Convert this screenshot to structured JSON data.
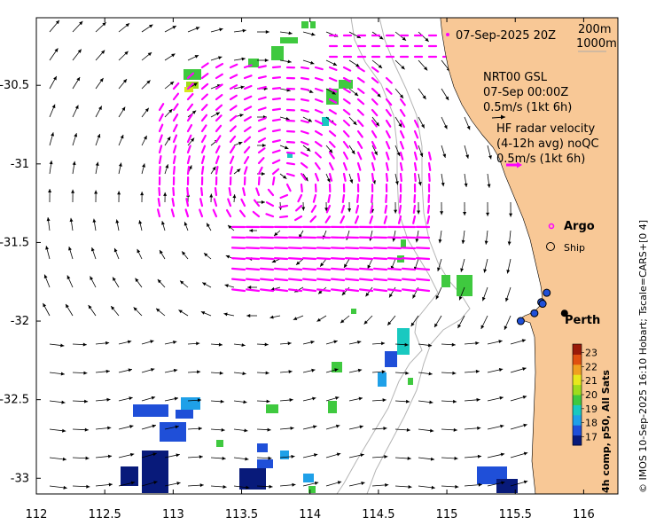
{
  "chart_data": {
    "type": "map",
    "xlim": [
      112,
      116.25
    ],
    "ylim": [
      -33.1,
      -30.07
    ],
    "x_ticks": [
      112,
      112.5,
      113,
      113.5,
      114,
      114.5,
      115,
      115.5,
      116
    ],
    "x_tick_labels": [
      "112",
      "112.5",
      "113",
      "113.5",
      "114",
      "114.5",
      "115",
      "115.5",
      "116"
    ],
    "y_ticks": [
      -30.5,
      -31,
      -31.5,
      -32,
      -32.5,
      -33
    ],
    "y_tick_labels": [
      "-30.5",
      "-31",
      "-31.5",
      "-32",
      "-32.5",
      "-33"
    ],
    "colorbar": {
      "title": "4h comp, p50, All Sats",
      "ticks": [
        17,
        18,
        19,
        20,
        21,
        22,
        23
      ],
      "tick_labels": [
        "17",
        "18",
        "19",
        "20",
        "21",
        "22",
        "23"
      ],
      "colors": [
        "#081a7a",
        "#1f4fd8",
        "#1fa0e8",
        "#19c9c0",
        "#3fc93f",
        "#9fdc1c",
        "#e8e81c",
        "#f0a020",
        "#e05010",
        "#9a1a08"
      ]
    },
    "colors": {
      "land": "#f8c896",
      "ocean": "#ffffff",
      "model_arrow": "#000000",
      "radar_arrow": "#ff00ff",
      "isobath": "#b4b4b4"
    },
    "places": [
      {
        "name": "Perth",
        "lon": 115.86,
        "lat": -31.95
      }
    ],
    "ships": [
      {
        "lon": 115.73,
        "lat": -31.82
      },
      {
        "lon": 115.69,
        "lat": -31.88
      },
      {
        "lon": 115.7,
        "lat": -31.89
      },
      {
        "lon": 115.64,
        "lat": -31.95
      },
      {
        "lon": 115.54,
        "lat": -32.0
      }
    ]
  },
  "labels": {
    "radar_time": "07-Sep-2025 20Z",
    "isobath_200": "200m",
    "isobath_1000": "1000m",
    "model_name": "NRT00 GSL",
    "model_time": "07-Sep 00:00Z",
    "model_scale": "0.5m/s (1kt 6h)",
    "radar_title": "HF radar velocity",
    "radar_avg": "(4-12h avg) noQC",
    "radar_scale": "0.5m/s (1kt 6h)",
    "argo": "Argo",
    "ship": "Ship",
    "place": "Perth",
    "credit": "© IMOS 10-Sep-2025 16:10 Hobart; Tscale=CARS+[0 4]"
  }
}
